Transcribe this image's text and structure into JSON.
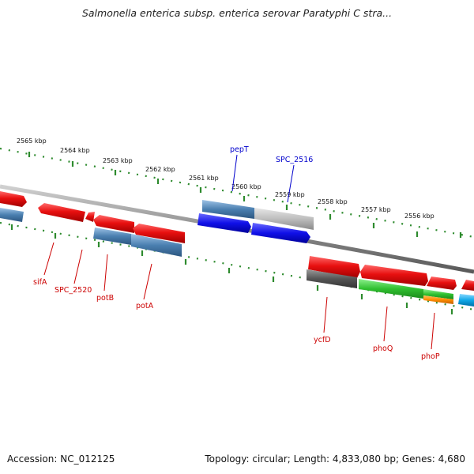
{
  "title": "Salmonella enterica subsp. enterica serovar Paratyphi C stra...",
  "footer": {
    "accession": "Accession: NC_012125",
    "summary": "Topology: circular; Length: 4,833,080 bp; Genes: 4,680"
  },
  "colors": {
    "backbone": "#8c8c8c",
    "ticks": "#2e8b2e",
    "red_gene": "#e01010",
    "steel_gene": "#4a7fb0",
    "blue_gene": "#1010e0",
    "grey_gene": "#bdbdbd",
    "dark_gene": "#555555",
    "green_gene": "#30c030",
    "orange_gene": "#ff8c00",
    "cyan_gene": "#10a8e8",
    "label_red": "#cc0000",
    "label_blue": "#0000cc"
  },
  "scale_ticks": [
    {
      "label": "2565 kbp"
    },
    {
      "label": "2564 kbp"
    },
    {
      "label": "2563 kbp"
    },
    {
      "label": "2562 kbp"
    },
    {
      "label": "2561 kbp"
    },
    {
      "label": "2560 kbp"
    },
    {
      "label": "2559 kbp"
    },
    {
      "label": "2558 kbp"
    },
    {
      "label": "2557 kbp"
    },
    {
      "label": "2556 kbp"
    }
  ],
  "gene_labels": [
    {
      "name": "pepT",
      "color": "blue"
    },
    {
      "name": "SPC_2516",
      "color": "blue"
    },
    {
      "name": "sifA",
      "color": "red"
    },
    {
      "name": "SPC_2520",
      "color": "red"
    },
    {
      "name": "potB",
      "color": "red"
    },
    {
      "name": "potA",
      "color": "red"
    },
    {
      "name": "ycfD",
      "color": "red"
    },
    {
      "name": "phoQ",
      "color": "red"
    },
    {
      "name": "phoP",
      "color": "red"
    }
  ]
}
